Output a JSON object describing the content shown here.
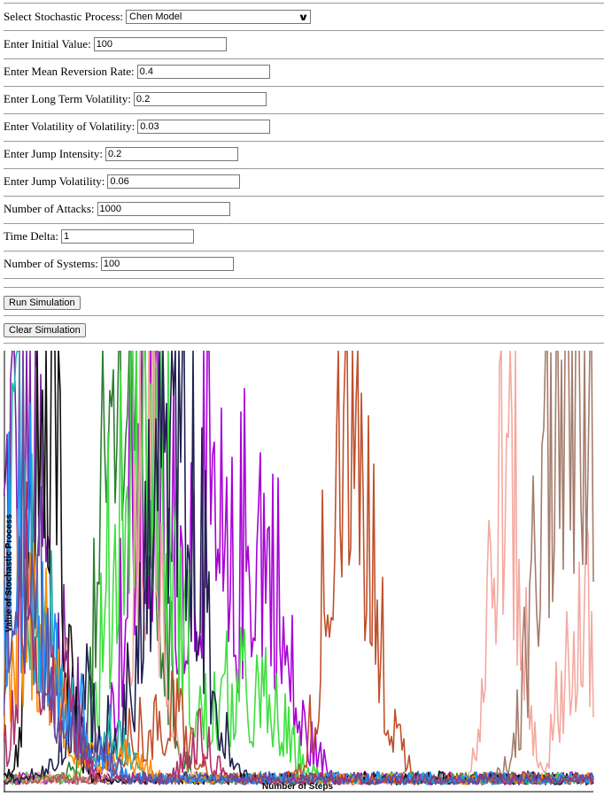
{
  "form": {
    "process_label": "Select Stochastic Process:",
    "process_selected": "Chen Model",
    "fields": [
      {
        "label": "Enter Initial Value:",
        "value": "100"
      },
      {
        "label": "Enter Mean Reversion Rate:",
        "value": "0.4"
      },
      {
        "label": "Enter Long Term Volatility:",
        "value": "0.2"
      },
      {
        "label": "Enter Volatility of Volatility:",
        "value": "0.03"
      },
      {
        "label": "Enter Jump Intensity:",
        "value": "0.2"
      },
      {
        "label": "Enter Jump Volatility:",
        "value": "0.06"
      },
      {
        "label": "Number of Attacks:",
        "value": "1000"
      },
      {
        "label": "Time Delta:",
        "value": "1"
      },
      {
        "label": "Number of Systems:",
        "value": "100"
      }
    ],
    "run_label": "Run Simulation",
    "clear_label": "Clear Simulation"
  },
  "chart_data": {
    "type": "line",
    "xlabel": "Number of Steps",
    "ylabel": "Value of Stochastic Process",
    "grid": false,
    "series_colors": [
      "#7b1fa2",
      "#a800d6",
      "#2e7d32",
      "#3ee03e",
      "#f4a9a0",
      "#c0502c",
      "#a47c6c",
      "#202050",
      "#101010",
      "#20b2aa",
      "#ff8c00",
      "#1e90ff",
      "#b0306a",
      "#5f4ea0"
    ],
    "series": [
      {
        "color": "#7b1fa2",
        "peaks": [
          [
            5,
            1.0
          ],
          [
            25,
            0.9
          ],
          [
            40,
            0.7
          ],
          [
            70,
            0.5
          ]
        ]
      },
      {
        "color": "#a800d6",
        "peaks": [
          [
            150,
            1.0
          ],
          [
            172,
            0.75
          ],
          [
            205,
            0.7
          ],
          [
            235,
            0.95
          ],
          [
            282,
            1.0
          ],
          [
            310,
            0.5
          ],
          [
            345,
            0.1
          ]
        ]
      },
      {
        "color": "#2e7d32",
        "peaks": [
          [
            130,
            1.0
          ],
          [
            140,
            0.8
          ],
          [
            150,
            0.7
          ],
          [
            165,
            0.55
          ]
        ]
      },
      {
        "color": "#3ee03e",
        "peaks": [
          [
            140,
            1.0
          ],
          [
            160,
            0.8
          ],
          [
            185,
            0.6
          ],
          [
            255,
            0.3
          ],
          [
            300,
            0.25
          ]
        ]
      },
      {
        "color": "#f4a9a0",
        "peaks": [
          [
            155,
            1.0
          ],
          [
            175,
            0.65
          ],
          [
            560,
            1.0
          ],
          [
            575,
            0.75
          ],
          [
            640,
            0.5
          ],
          [
            665,
            0.45
          ]
        ]
      },
      {
        "color": "#c0502c",
        "peaks": [
          [
            385,
            1.0
          ],
          [
            400,
            0.75
          ],
          [
            375,
            0.5
          ],
          [
            430,
            0.25
          ],
          [
            150,
            0.2
          ],
          [
            195,
            0.25
          ]
        ]
      },
      {
        "color": "#a47c6c",
        "peaks": [
          [
            615,
            0.85
          ],
          [
            630,
            0.7
          ],
          [
            660,
            1.0
          ],
          [
            667,
            0.7
          ]
        ]
      },
      {
        "color": "#202050",
        "peaks": [
          [
            175,
            0.75
          ],
          [
            195,
            0.65
          ],
          [
            210,
            0.6
          ],
          [
            90,
            0.3
          ]
        ]
      },
      {
        "color": "#101010",
        "peaks": [
          [
            50,
            1.0
          ],
          [
            45,
            0.6
          ],
          [
            60,
            0.45
          ]
        ]
      },
      {
        "color": "#20b2aa",
        "peaks": [
          [
            10,
            0.7
          ],
          [
            30,
            0.5
          ],
          [
            60,
            0.4
          ],
          [
            120,
            0.2
          ]
        ]
      },
      {
        "color": "#ff8c00",
        "peaks": [
          [
            20,
            0.6
          ],
          [
            55,
            0.35
          ],
          [
            130,
            0.15
          ]
        ]
      },
      {
        "color": "#1e90ff",
        "peaks": [
          [
            12,
            0.65
          ],
          [
            35,
            0.45
          ],
          [
            80,
            0.2
          ]
        ]
      },
      {
        "color": "#b0306a",
        "peaks": [
          [
            30,
            0.8
          ],
          [
            70,
            0.35
          ],
          [
            220,
            0.15
          ]
        ]
      },
      {
        "color": "#5f4ea0",
        "peaks": [
          [
            15,
            0.85
          ],
          [
            45,
            0.5
          ],
          [
            100,
            0.2
          ]
        ]
      }
    ]
  }
}
